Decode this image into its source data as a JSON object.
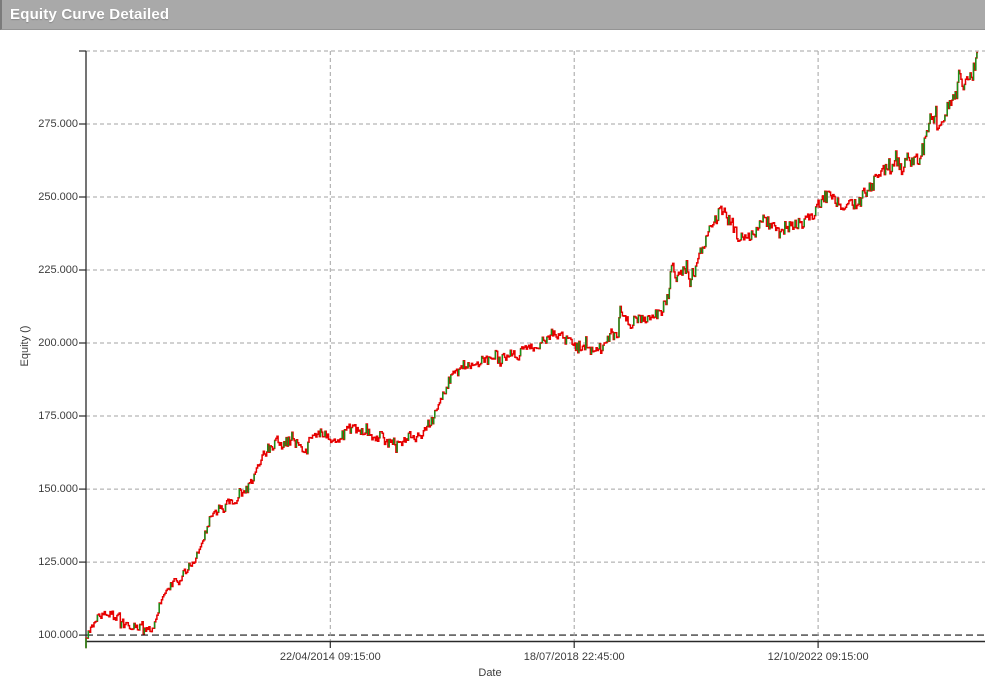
{
  "window": {
    "title": "Equity Curve Detailed"
  },
  "chart_data": {
    "type": "line",
    "title": "Equity Curve Detailed",
    "xlabel": "Date",
    "ylabel": "Equity ()",
    "legend": "none",
    "grid": true,
    "x_ticks": [
      {
        "label": "22/04/2014 09:15:00",
        "year": 2014.305
      },
      {
        "label": "18/07/2018 22:45:00",
        "year": 2018.543
      },
      {
        "label": "12/10/2022 09:15:00",
        "year": 2022.781
      }
    ],
    "y_ticks": [
      {
        "label": "100.000",
        "value": 100
      },
      {
        "label": "125.000",
        "value": 125
      },
      {
        "label": "150.000",
        "value": 150
      },
      {
        "label": "175.000",
        "value": 175
      },
      {
        "label": "200.000",
        "value": 200
      },
      {
        "label": "225.000",
        "value": 225
      },
      {
        "label": "250.000",
        "value": 250
      },
      {
        "label": "275.000",
        "value": 275
      },
      {
        "label": "",
        "value": 300
      }
    ],
    "x_range_years": [
      2010.06,
      2025.68
    ],
    "y_range": [
      97.8,
      300.0
    ],
    "baseline_value": 100,
    "colors": {
      "line": "#e60000",
      "up_tick": "#18921a",
      "grid": "#a3a3a3",
      "baseline": "#141414",
      "axis": "#2a2a2a",
      "label": "#3c3c3c",
      "titlebar_bg": "#a9a9a9",
      "titlebar_text": "#ffffff"
    },
    "points": [
      [
        2010.06,
        95.5
      ],
      [
        2010.08,
        99.0
      ],
      [
        2010.18,
        103.5
      ],
      [
        2010.3,
        106.5
      ],
      [
        2010.4,
        107.5
      ],
      [
        2010.48,
        105.5
      ],
      [
        2010.51,
        108.5
      ],
      [
        2010.58,
        105.2
      ],
      [
        2010.66,
        106.8
      ],
      [
        2010.74,
        103.4
      ],
      [
        2010.8,
        105.0
      ],
      [
        2010.86,
        101.7
      ],
      [
        2010.93,
        103.4
      ],
      [
        2011.0,
        102.3
      ],
      [
        2011.06,
        104.0
      ],
      [
        2011.1,
        100.7
      ],
      [
        2011.17,
        102.0
      ],
      [
        2011.22,
        100.9
      ],
      [
        2011.28,
        104.0
      ],
      [
        2011.35,
        110.3
      ],
      [
        2011.45,
        113.7
      ],
      [
        2011.52,
        115.4
      ],
      [
        2011.6,
        118.8
      ],
      [
        2011.69,
        117.8
      ],
      [
        2011.78,
        121.2
      ],
      [
        2011.87,
        124.0
      ],
      [
        2011.95,
        125.5
      ],
      [
        2012.04,
        129.5
      ],
      [
        2012.13,
        134.0
      ],
      [
        2012.22,
        139.4
      ],
      [
        2012.3,
        141.8
      ],
      [
        2012.39,
        143.5
      ],
      [
        2012.47,
        142.1
      ],
      [
        2012.56,
        146.2
      ],
      [
        2012.65,
        144.5
      ],
      [
        2012.74,
        148.6
      ],
      [
        2012.88,
        149.7
      ],
      [
        2012.96,
        153.0
      ],
      [
        2013.05,
        157.5
      ],
      [
        2013.12,
        160.6
      ],
      [
        2013.22,
        163.4
      ],
      [
        2013.31,
        164.4
      ],
      [
        2013.4,
        167.5
      ],
      [
        2013.48,
        165.1
      ],
      [
        2013.56,
        166.1
      ],
      [
        2013.65,
        166.8
      ],
      [
        2013.73,
        165.8
      ],
      [
        2013.82,
        164.4
      ],
      [
        2013.9,
        162.7
      ],
      [
        2013.99,
        167.8
      ],
      [
        2014.06,
        169.5
      ],
      [
        2014.22,
        169.5
      ],
      [
        2014.3,
        168.5
      ],
      [
        2014.4,
        165.8
      ],
      [
        2014.52,
        168.0
      ],
      [
        2014.66,
        170.9
      ],
      [
        2014.78,
        170.2
      ],
      [
        2014.9,
        169.2
      ],
      [
        2015.0,
        169.5
      ],
      [
        2015.08,
        166.7
      ],
      [
        2015.2,
        168.4
      ],
      [
        2015.3,
        166.1
      ],
      [
        2015.4,
        165.7
      ],
      [
        2015.5,
        167.4
      ],
      [
        2015.6,
        166.1
      ],
      [
        2015.72,
        169.1
      ],
      [
        2015.8,
        167.1
      ],
      [
        2015.92,
        169.4
      ],
      [
        2016.04,
        172.5
      ],
      [
        2016.13,
        174.6
      ],
      [
        2016.21,
        179.4
      ],
      [
        2016.3,
        183.2
      ],
      [
        2016.39,
        187.3
      ],
      [
        2016.47,
        191.4
      ],
      [
        2016.52,
        190.1
      ],
      [
        2016.65,
        192.5
      ],
      [
        2016.82,
        193.5
      ],
      [
        2016.95,
        193.8
      ],
      [
        2017.08,
        194.2
      ],
      [
        2017.2,
        195.9
      ],
      [
        2017.26,
        193.5
      ],
      [
        2017.46,
        197.6
      ],
      [
        2017.56,
        195.2
      ],
      [
        2017.65,
        196.9
      ],
      [
        2017.78,
        197.6
      ],
      [
        2017.9,
        198.6
      ],
      [
        2018.02,
        200.3
      ],
      [
        2018.12,
        201.7
      ],
      [
        2018.22,
        203.1
      ],
      [
        2018.3,
        203.4
      ],
      [
        2018.42,
        200.7
      ],
      [
        2018.54,
        199.7
      ],
      [
        2018.64,
        199.0
      ],
      [
        2018.73,
        198.3
      ],
      [
        2018.86,
        197.6
      ],
      [
        2018.94,
        198.0
      ],
      [
        2019.05,
        198.3
      ],
      [
        2019.11,
        200.7
      ],
      [
        2019.2,
        203.1
      ],
      [
        2019.32,
        203.1
      ],
      [
        2019.36,
        211.0
      ],
      [
        2019.42,
        207.6
      ],
      [
        2019.55,
        206.9
      ],
      [
        2019.65,
        208.3
      ],
      [
        2019.74,
        207.6
      ],
      [
        2019.85,
        209.3
      ],
      [
        2019.95,
        210.3
      ],
      [
        2020.05,
        209.3
      ],
      [
        2020.12,
        213.4
      ],
      [
        2020.2,
        216.2
      ],
      [
        2020.26,
        228.0
      ],
      [
        2020.33,
        221.5
      ],
      [
        2020.42,
        223.0
      ],
      [
        2020.5,
        225.3
      ],
      [
        2020.56,
        220.7
      ],
      [
        2020.64,
        222.0
      ],
      [
        2020.7,
        227.6
      ],
      [
        2020.78,
        232.0
      ],
      [
        2020.9,
        237.9
      ],
      [
        2021.0,
        242.0
      ],
      [
        2021.13,
        245.8
      ],
      [
        2021.22,
        242.4
      ],
      [
        2021.3,
        240.7
      ],
      [
        2021.4,
        236.8
      ],
      [
        2021.5,
        235.5
      ],
      [
        2021.63,
        236.5
      ],
      [
        2021.72,
        237.2
      ],
      [
        2021.81,
        243.0
      ],
      [
        2021.9,
        241.5
      ],
      [
        2021.98,
        240.7
      ],
      [
        2022.06,
        238.0
      ],
      [
        2022.14,
        237.2
      ],
      [
        2022.24,
        240.0
      ],
      [
        2022.31,
        242.4
      ],
      [
        2022.4,
        240.3
      ],
      [
        2022.48,
        241.3
      ],
      [
        2022.58,
        242.0
      ],
      [
        2022.66,
        243.1
      ],
      [
        2022.76,
        245.0
      ],
      [
        2022.83,
        248.2
      ],
      [
        2022.92,
        249.9
      ],
      [
        2023.01,
        251.6
      ],
      [
        2023.1,
        248.9
      ],
      [
        2023.18,
        245.8
      ],
      [
        2023.28,
        246.5
      ],
      [
        2023.38,
        248.0
      ],
      [
        2023.47,
        247.0
      ],
      [
        2023.56,
        249.2
      ],
      [
        2023.65,
        253.4
      ],
      [
        2023.74,
        254.0
      ],
      [
        2023.82,
        257.0
      ],
      [
        2023.92,
        259.2
      ],
      [
        2024.0,
        261.3
      ],
      [
        2024.08,
        259.6
      ],
      [
        2024.17,
        262.6
      ],
      [
        2024.22,
        259.6
      ],
      [
        2024.26,
        257.5
      ],
      [
        2024.34,
        263.0
      ],
      [
        2024.41,
        262.0
      ],
      [
        2024.48,
        263.7
      ],
      [
        2024.55,
        263.0
      ],
      [
        2024.62,
        265.0
      ],
      [
        2024.73,
        276.8
      ],
      [
        2024.78,
        275.0
      ],
      [
        2024.84,
        278.1
      ],
      [
        2024.87,
        273.0
      ],
      [
        2024.93,
        275.7
      ],
      [
        2024.99,
        276.8
      ],
      [
        2025.06,
        281.6
      ],
      [
        2025.13,
        284.4
      ],
      [
        2025.2,
        288.0
      ],
      [
        2025.25,
        294.7
      ],
      [
        2025.29,
        291.2
      ],
      [
        2025.33,
        286.8
      ],
      [
        2025.38,
        291.9
      ],
      [
        2025.44,
        294.0
      ],
      [
        2025.48,
        291.2
      ],
      [
        2025.53,
        296.5
      ],
      [
        2025.56,
        299.5
      ]
    ]
  }
}
